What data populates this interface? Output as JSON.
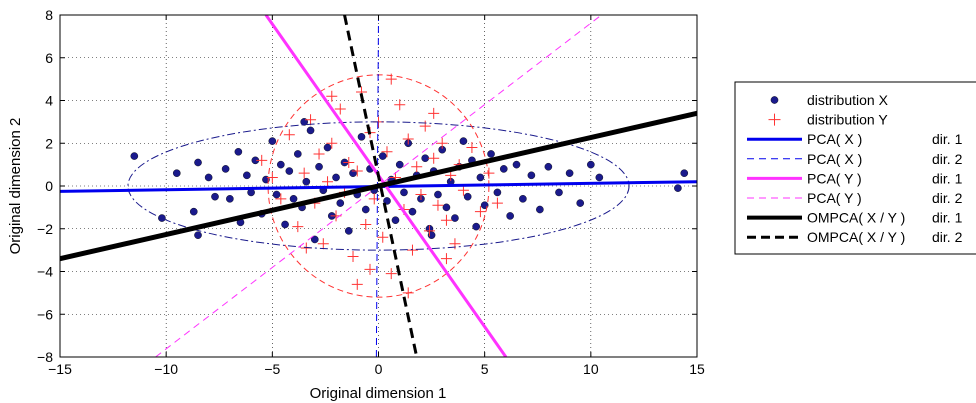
{
  "chart_data": {
    "type": "scatter",
    "xlabel": "Original dimension 1",
    "ylabel": "Original dimension 2",
    "xlim": [
      -15,
      15
    ],
    "ylim": [
      -8,
      8
    ],
    "x_ticks": [
      -15,
      -10,
      -5,
      0,
      5,
      10,
      15
    ],
    "y_ticks": [
      -8,
      -6,
      -4,
      -2,
      0,
      2,
      4,
      6,
      8
    ],
    "x_tick_labels": [
      "−15",
      "−10",
      "−5",
      "0",
      "5",
      "10",
      "15"
    ],
    "y_tick_labels": [
      "−8",
      "−6",
      "−4",
      "−2",
      "0",
      "2",
      "4",
      "6",
      "8"
    ],
    "grid": true,
    "legend_position": "right",
    "series": [
      {
        "name": "distribution X",
        "marker": "filled-circle",
        "color": "#1a1a8c",
        "points": [
          [
            -11.5,
            1.4
          ],
          [
            -10.2,
            -1.5
          ],
          [
            -9.5,
            0.6
          ],
          [
            -8.5,
            1.1
          ],
          [
            -8.7,
            -1.2
          ],
          [
            -8.5,
            -2.3
          ],
          [
            -8.0,
            0.4
          ],
          [
            -7.7,
            -0.5
          ],
          [
            -7.2,
            0.8
          ],
          [
            -7.0,
            -0.6
          ],
          [
            -6.6,
            1.6
          ],
          [
            -6.2,
            0.5
          ],
          [
            -6.0,
            -0.3
          ],
          [
            -5.8,
            1.2
          ],
          [
            -5.5,
            -1.3
          ],
          [
            -5.3,
            0.3
          ],
          [
            -5.0,
            2.1
          ],
          [
            -4.8,
            -0.4
          ],
          [
            -4.6,
            1.0
          ],
          [
            -4.4,
            -1.8
          ],
          [
            -4.2,
            0.7
          ],
          [
            -4.0,
            -0.6
          ],
          [
            -3.8,
            1.5
          ],
          [
            -3.6,
            -1.0
          ],
          [
            -3.4,
            0.2
          ],
          [
            -3.2,
            2.6
          ],
          [
            -3.0,
            -2.5
          ],
          [
            -2.8,
            0.9
          ],
          [
            -2.6,
            -0.2
          ],
          [
            -2.4,
            1.8
          ],
          [
            -2.2,
            -1.4
          ],
          [
            -2.0,
            0.4
          ],
          [
            -1.8,
            -0.8
          ],
          [
            -1.6,
            1.1
          ],
          [
            -1.4,
            -2.1
          ],
          [
            -1.2,
            0.6
          ],
          [
            -1.0,
            -0.4
          ],
          [
            -0.8,
            2.3
          ],
          [
            -0.6,
            -1.1
          ],
          [
            -0.4,
            0.8
          ],
          [
            -0.2,
            -0.2
          ],
          [
            0.2,
            1.4
          ],
          [
            0.4,
            -0.7
          ],
          [
            0.6,
            0.3
          ],
          [
            0.8,
            -1.6
          ],
          [
            1.0,
            1.0
          ],
          [
            1.2,
            -0.3
          ],
          [
            1.4,
            2.0
          ],
          [
            1.6,
            -1.2
          ],
          [
            1.8,
            0.5
          ],
          [
            2.0,
            -0.6
          ],
          [
            2.2,
            1.3
          ],
          [
            2.4,
            -2.0
          ],
          [
            2.6,
            0.7
          ],
          [
            2.8,
            -0.4
          ],
          [
            3.0,
            1.7
          ],
          [
            3.2,
            -1.0
          ],
          [
            3.4,
            0.2
          ],
          [
            3.6,
            -1.5
          ],
          [
            3.8,
            0.9
          ],
          [
            4.0,
            2.1
          ],
          [
            4.2,
            -0.5
          ],
          [
            4.4,
            1.2
          ],
          [
            4.6,
            -1.9
          ],
          [
            4.8,
            0.4
          ],
          [
            5.0,
            -0.9
          ],
          [
            5.3,
            1.5
          ],
          [
            5.6,
            -0.3
          ],
          [
            5.9,
            0.8
          ],
          [
            6.2,
            -1.4
          ],
          [
            6.5,
            1.0
          ],
          [
            6.8,
            -0.6
          ],
          [
            7.2,
            0.5
          ],
          [
            7.6,
            -1.1
          ],
          [
            8.0,
            0.9
          ],
          [
            8.5,
            -0.3
          ],
          [
            9.0,
            0.6
          ],
          [
            9.5,
            -0.8
          ],
          [
            10.0,
            1.0
          ],
          [
            10.4,
            0.4
          ],
          [
            14.1,
            -0.1
          ],
          [
            14.4,
            0.6
          ],
          [
            -3.5,
            3.0
          ],
          [
            2.5,
            -2.3
          ],
          [
            -6.5,
            -1.7
          ]
        ]
      },
      {
        "name": "distribution Y",
        "marker": "plus",
        "color": "#ff3333",
        "points": [
          [
            -4.2,
            2.4
          ],
          [
            -3.8,
            -1.9
          ],
          [
            -3.5,
            0.6
          ],
          [
            -3.2,
            3.1
          ],
          [
            -3.0,
            -0.8
          ],
          [
            -2.8,
            1.5
          ],
          [
            -2.6,
            -2.7
          ],
          [
            -2.4,
            0.2
          ],
          [
            -2.2,
            2.0
          ],
          [
            -2.0,
            -1.4
          ],
          [
            -1.8,
            3.6
          ],
          [
            -1.6,
            -0.3
          ],
          [
            -1.4,
            1.1
          ],
          [
            -1.2,
            -3.3
          ],
          [
            -1.0,
            0.7
          ],
          [
            -0.8,
            4.4
          ],
          [
            -0.6,
            -1.8
          ],
          [
            -0.4,
            2.5
          ],
          [
            -0.2,
            -0.6
          ],
          [
            0.0,
            3.0
          ],
          [
            0.2,
            -2.4
          ],
          [
            0.4,
            1.6
          ],
          [
            0.6,
            -4.1
          ],
          [
            0.8,
            0.4
          ],
          [
            1.0,
            3.8
          ],
          [
            1.2,
            -1.1
          ],
          [
            1.4,
            2.2
          ],
          [
            1.6,
            -3.0
          ],
          [
            1.8,
            0.9
          ],
          [
            2.0,
            -0.4
          ],
          [
            2.2,
            2.8
          ],
          [
            2.4,
            -2.1
          ],
          [
            2.6,
            1.3
          ],
          [
            2.8,
            -0.9
          ],
          [
            3.0,
            2.0
          ],
          [
            3.2,
            -1.6
          ],
          [
            3.4,
            0.5
          ],
          [
            3.6,
            -2.7
          ],
          [
            3.8,
            1.0
          ],
          [
            4.0,
            -0.2
          ],
          [
            4.4,
            1.8
          ],
          [
            4.8,
            -1.2
          ],
          [
            5.2,
            0.6
          ],
          [
            5.6,
            -0.8
          ],
          [
            -5.0,
            0.4
          ],
          [
            -4.6,
            -0.6
          ],
          [
            -5.5,
            1.2
          ],
          [
            -1.0,
            -4.6
          ],
          [
            0.6,
            5.0
          ],
          [
            -0.4,
            -3.9
          ],
          [
            1.4,
            -5.0
          ],
          [
            -2.2,
            4.2
          ],
          [
            2.6,
            3.4
          ],
          [
            3.2,
            -3.4
          ],
          [
            -3.4,
            -2.9
          ]
        ]
      }
    ],
    "lines": [
      {
        "name": "PCA( X )",
        "direction": "dir. 1",
        "style": "solid",
        "color": "#0000ee",
        "width": 3,
        "points": [
          [
            -15,
            -0.25
          ],
          [
            15,
            0.2
          ]
        ]
      },
      {
        "name": "PCA( X )",
        "direction": "dir. 2",
        "style": "dashed",
        "color": "#0000ee",
        "width": 1,
        "points": [
          [
            -0.1,
            -8
          ],
          [
            0.0,
            8
          ]
        ]
      },
      {
        "name": "PCA( Y )",
        "direction": "dir. 1",
        "style": "solid",
        "color": "#ff33ff",
        "width": 3,
        "points": [
          [
            -5.3,
            8
          ],
          [
            6.0,
            -8
          ]
        ]
      },
      {
        "name": "PCA( Y )",
        "direction": "dir. 2",
        "style": "dashed",
        "color": "#ff33ff",
        "width": 1,
        "points": [
          [
            -10.5,
            -8
          ],
          [
            10.5,
            8
          ]
        ]
      },
      {
        "name": "OMPCA( X / Y )",
        "direction": "dir. 1",
        "style": "solid",
        "color": "#000000",
        "width": 5,
        "points": [
          [
            -15,
            -3.4
          ],
          [
            15,
            3.4
          ]
        ]
      },
      {
        "name": "OMPCA( X / Y )",
        "direction": "dir. 2",
        "style": "dashed",
        "color": "#000000",
        "width": 3,
        "points": [
          [
            -1.6,
            8
          ],
          [
            1.8,
            -8
          ]
        ]
      }
    ],
    "ellipses": [
      {
        "series": "distribution X",
        "color": "#1a1a8c",
        "cx": 0,
        "cy": 0,
        "rx": 11.8,
        "ry": 3.0,
        "style": "dash-dot"
      },
      {
        "series": "distribution Y",
        "color": "#ff3333",
        "cx": 0,
        "cy": 0,
        "rx": 5.2,
        "ry": 5.2,
        "style": "dashed"
      }
    ],
    "legend": [
      {
        "label": "distribution X",
        "suffix": "",
        "sym": "circle",
        "color": "#1a1a8c"
      },
      {
        "label": "distribution Y",
        "suffix": "",
        "sym": "plus",
        "color": "#ff3333"
      },
      {
        "label": "PCA( X )",
        "suffix": "dir. 1",
        "sym": "solid",
        "color": "#0000ee"
      },
      {
        "label": "PCA( X )",
        "suffix": "dir. 2",
        "sym": "dashed",
        "color": "#0000ee"
      },
      {
        "label": "PCA( Y )",
        "suffix": "dir. 1",
        "sym": "solid",
        "color": "#ff33ff"
      },
      {
        "label": "PCA( Y )",
        "suffix": "dir. 2",
        "sym": "dashed",
        "color": "#ff33ff"
      },
      {
        "label": "OMPCA( X / Y )",
        "suffix": "dir. 1",
        "sym": "solid-thick",
        "color": "#000000"
      },
      {
        "label": "OMPCA( X / Y )",
        "suffix": "dir. 2",
        "sym": "dashed-thick",
        "color": "#000000"
      }
    ]
  }
}
